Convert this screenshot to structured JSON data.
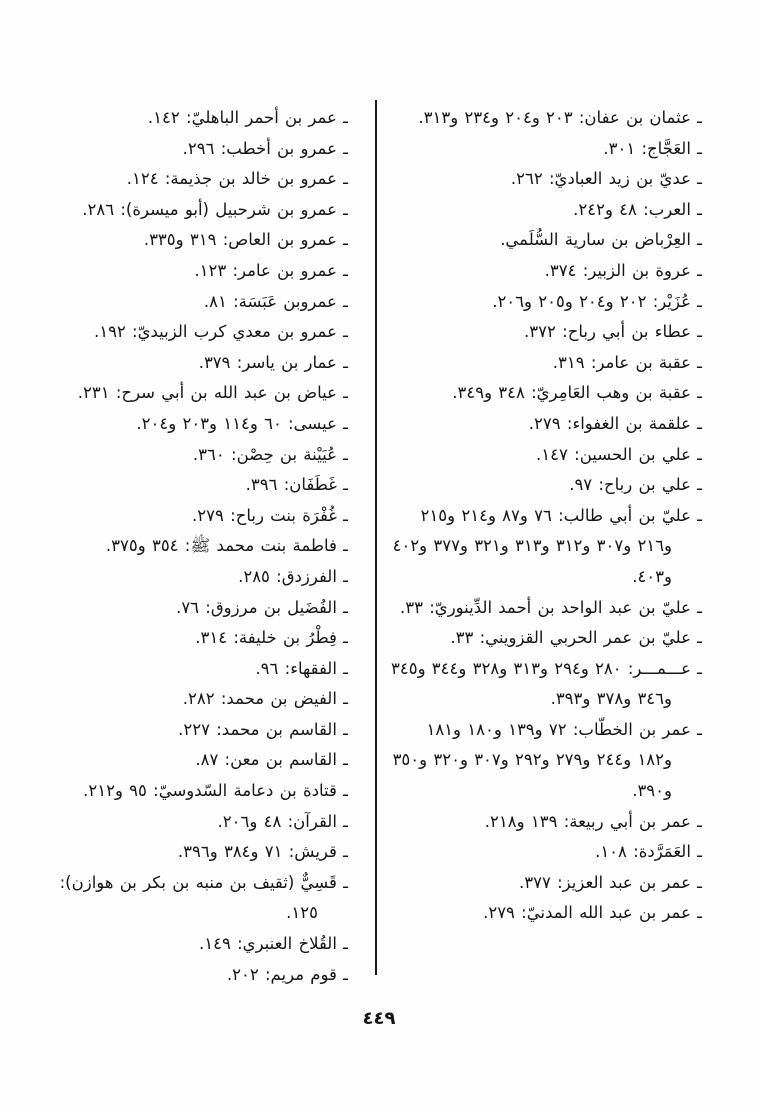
{
  "page": {
    "folio": "٤٤٩",
    "right_column": {
      "entries": [
        "ـ عثمان بن عفان: ٢٠٣ و٢٠٤ و٢٣٤ و٣١٣.",
        "ـ العَجَّاج: ٣٠١.",
        "ـ عديّ بن زيد العباديّ: ٢٦٢.",
        "ـ العرب: ٤٨ و٢٤٢.",
        "ـ العِرْباض بن سارية السُّلَمي.",
        "ـ عروة بن الزبير: ٣٧٤.",
        "ـ عُزَيْر: ٢٠٢ و٢٠٤ و٢٠٥ و٢٠٦.",
        "ـ عطاء بن أبي رباح: ٣٧٢.",
        "ـ عقبة بن عامر: ٣١٩.",
        "ـ عقبة بن وهب العَامِريّ: ٣٤٨ و٣٤٩.",
        "ـ علقمة بن الغفواء: ٢٧٩.",
        "ـ علي بن الحسين: ١٤٧.",
        "ـ علي بن رباح: ٩٧.",
        "ـ عليّ بن أبي طالب: ٧٦ و٨٧ و٢١٤ و٢١٥ و٢١٦ و٣٠٧ و٣١٢ و٣١٣ و٣٢١ و٣٧٧ و٤٠٢ و٤٠٣.",
        "ـ عليّ بن عبد الواحد بن أحمد الدِّينوريّ: ٣٣.",
        "ـ عليّ بن عمر الحربي القزويني: ٣٣.",
        "ـ عـــمـــر: ٢٨٠ و٢٩٤ و٣١٣ و٣٢٨ و٣٤٤ و٣٤٥ و٣٤٦ و٣٧٨ و٣٩٣.",
        "ـ عمر بن الخطّاب: ٧٢ و١٣٩ و١٨٠ و١٨١ و١٨٢ و٢٤٤ و٢٧٩ و٢٩٢ و٣٠٧ و٣٢٠ و٣٥٠ و٣٩٠.",
        "ـ عمر بن أبي ربيعة: ١٣٩ و٢١٨.",
        "ـ العَمَرَّدة: ١٠٨.",
        "ـ عمر بن عبد العزيز: ٣٧٧.",
        "ـ عمر بن عبد الله المدنيّ: ٢٧٩."
      ]
    },
    "left_column": {
      "entries": [
        "ـ عمر بن أحمر الباهليّ: ١٤٢.",
        "ـ عمرو بن أخطب: ٢٩٦.",
        "ـ عمرو بن خالد بن جذيمة: ١٢٤.",
        "ـ عمرو بن شرحبيل (أبو ميسرة): ٢٨٦.",
        "ـ عمرو بن العاص: ٣١٩ و٣٣٥.",
        "ـ عمرو بن عامر: ١٢٣.",
        "ـ عمروبن عَبَسَة: ٨١.",
        "ـ عمرو بن معدي كرب الزبيديّ: ١٩٢.",
        "ـ عمار بن ياسر: ٣٧٩.",
        "ـ عياض بن عبد الله بن أبي سرح: ٢٣١.",
        "ـ عيسى: ٦٠ و١١٤ و٢٠٣ و٢٠٤.",
        "ـ عُيَيْنة بن حِصْن: ٣٦٠.",
        "ـ غَطَفَان: ٣٩٦.",
        "ـ غُفْرَة بنت رباح: ٢٧٩.",
        "ـ فاطمة بنت محمد ﷺ: ٣٥٤ و٣٧٥.",
        "ـ الفرزدق: ٢٨٥.",
        "ـ الفُضَيل بن مرزوق: ٧٦.",
        "ـ فِطْرُ بن خليفة: ٣١٤.",
        "ـ الفقهاء: ٩٦.",
        "ـ الفيض بن محمد: ٢٨٢.",
        "ـ القاسم بن محمد: ٢٢٧.",
        "ـ القاسم بن معن: ٨٧.",
        "ـ قتادة بن دعامة السّدوسيّ: ٩٥ و٢١٢.",
        "ـ القرآن: ٤٨ و٢٠٦.",
        "ـ قريش: ٧١ و٣٨٤ و٣٩٦.",
        "ـ قَسِيٌّ (ثقيف بن منبه بن بكر بن هوازن): ١٢٥.",
        "ـ القُلاخ العنبري: ١٤٩.",
        "ـ قوم مريم: ٢٠٢."
      ]
    }
  }
}
